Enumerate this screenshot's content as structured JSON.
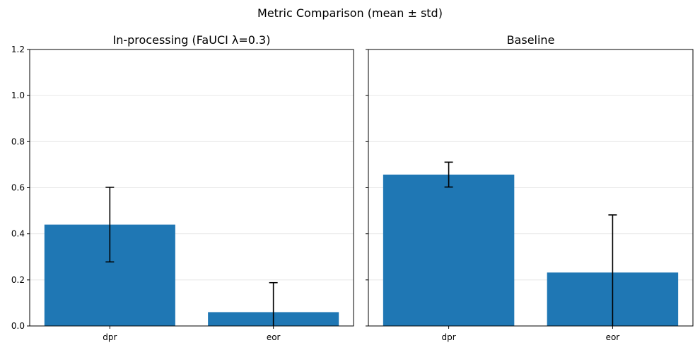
{
  "figure": {
    "suptitle": "Metric Comparison (mean ± std)"
  },
  "chart_data": [
    {
      "type": "bar",
      "title": "In-processing (FaUCI λ=0.3)",
      "categories": [
        "dpr",
        "eor"
      ],
      "values": [
        0.44,
        0.06
      ],
      "errors": [
        0.162,
        0.128
      ],
      "ylim": [
        0,
        1.2
      ],
      "yticks": [
        0.0,
        0.2,
        0.4,
        0.6,
        0.8,
        1.0,
        1.2
      ],
      "ytick_labels": [
        "0.0",
        "0.2",
        "0.4",
        "0.6",
        "0.8",
        "1.0",
        "1.2"
      ],
      "grid": "y",
      "bar_color": "#1f77b4"
    },
    {
      "type": "bar",
      "title": "Baseline",
      "categories": [
        "dpr",
        "eor"
      ],
      "values": [
        0.657,
        0.232
      ],
      "errors": [
        0.054,
        0.25
      ],
      "ylim": [
        0,
        1.2
      ],
      "yticks": [
        0.0,
        0.2,
        0.4,
        0.6,
        0.8,
        1.0,
        1.2
      ],
      "ytick_labels": [],
      "grid": "y",
      "bar_color": "#1f77b4"
    }
  ]
}
